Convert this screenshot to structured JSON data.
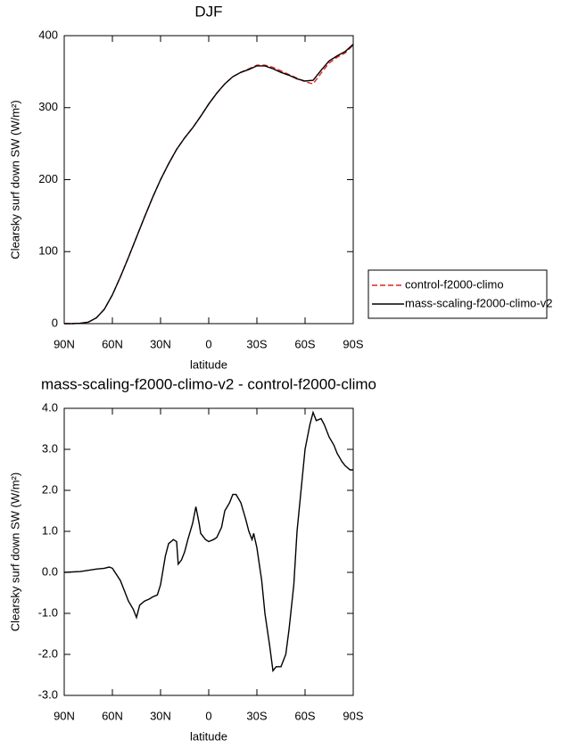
{
  "chart_data": [
    {
      "type": "line",
      "title": "DJF",
      "xlabel": "latitude",
      "ylabel": "Clearsky surf down SW (W/m²)",
      "xlim": [
        90,
        -90
      ],
      "xticks": [
        {
          "value": 90,
          "label": "90N"
        },
        {
          "value": 60,
          "label": "60N"
        },
        {
          "value": 30,
          "label": "30N"
        },
        0,
        {
          "value": -30,
          "label": "30S"
        },
        {
          "value": -60,
          "label": "60S"
        },
        {
          "value": -90,
          "label": "90S"
        }
      ],
      "ylim": [
        0,
        400
      ],
      "yticks": [
        0,
        100,
        200,
        300,
        400
      ],
      "x": [
        90,
        85,
        80,
        75,
        70,
        65,
        60,
        55,
        50,
        45,
        40,
        35,
        30,
        25,
        20,
        15,
        10,
        5,
        0,
        -5,
        -10,
        -15,
        -20,
        -25,
        -30,
        -35,
        -40,
        -45,
        -50,
        -55,
        -60,
        -65,
        -70,
        -75,
        -80,
        -85,
        -90
      ],
      "series": [
        {
          "name": "control-f2000-climo",
          "color": "#e8211c",
          "dashed": true,
          "values": [
            0,
            0,
            0.5,
            2,
            8,
            20,
            40,
            65,
            92,
            120,
            148,
            175,
            200,
            222,
            242,
            258,
            272,
            288,
            305,
            320,
            333,
            343,
            349,
            354,
            359,
            359,
            356,
            351,
            346,
            341,
            336,
            333,
            348,
            362,
            370,
            376,
            387
          ]
        },
        {
          "name": "mass-scaling-f2000-climo-v2",
          "color": "#000000",
          "dashed": false,
          "values": [
            0,
            0,
            0.5,
            2,
            8,
            20,
            40,
            65,
            92,
            120,
            148,
            175,
            200,
            222,
            242,
            258,
            272,
            288,
            305,
            320,
            333,
            343,
            349,
            353,
            358,
            358,
            354,
            349,
            345,
            340,
            337,
            338,
            352,
            365,
            372,
            378,
            388
          ]
        }
      ]
    },
    {
      "type": "line",
      "title": "mass-scaling-f2000-climo-v2 - control-f2000-climo",
      "xlabel": "latitude",
      "ylabel": "Clearsky surf down SW (W/m²)",
      "xlim": [
        90,
        -90
      ],
      "xticks": [
        {
          "value": 90,
          "label": "90N"
        },
        {
          "value": 60,
          "label": "60N"
        },
        {
          "value": 30,
          "label": "30N"
        },
        0,
        {
          "value": -30,
          "label": "30S"
        },
        {
          "value": -60,
          "label": "60S"
        },
        {
          "value": -90,
          "label": "90S"
        }
      ],
      "ylim": [
        -3,
        4
      ],
      "yticks": [
        {
          "value": -3,
          "label": "-3.0"
        },
        {
          "value": -2,
          "label": "-2.0"
        },
        {
          "value": -1,
          "label": "-1.0"
        },
        {
          "value": 0,
          "label": "0.0"
        },
        {
          "value": 1,
          "label": "1.0"
        },
        {
          "value": 2,
          "label": "2.0"
        },
        {
          "value": 3,
          "label": "3.0"
        },
        {
          "value": 4,
          "label": "4.0"
        }
      ],
      "x": [
        90,
        80,
        70,
        65,
        62,
        60,
        55,
        50,
        47,
        45,
        43,
        40,
        37,
        35,
        32,
        30,
        27,
        25,
        22,
        20,
        19,
        17,
        15,
        13,
        10,
        8,
        6,
        5,
        2,
        0,
        -3,
        -5,
        -8,
        -10,
        -13,
        -15,
        -17,
        -20,
        -23,
        -25,
        -27,
        -28,
        -30,
        -33,
        -35,
        -38,
        -40,
        -42,
        -45,
        -48,
        -50,
        -53,
        -55,
        -58,
        -60,
        -63,
        -65,
        -67,
        -70,
        -72,
        -75,
        -78,
        -80,
        -83,
        -85,
        -88,
        -90
      ],
      "series": [
        {
          "name": "mass-scaling-f2000-climo-v2",
          "color": "#000000",
          "dashed": false,
          "values": [
            0,
            0.02,
            0.08,
            0.1,
            0.13,
            0.1,
            -0.2,
            -0.7,
            -0.9,
            -1.1,
            -0.8,
            -0.7,
            -0.65,
            -0.6,
            -0.55,
            -0.3,
            0.4,
            0.7,
            0.8,
            0.75,
            0.2,
            0.3,
            0.5,
            0.8,
            1.2,
            1.6,
            1.2,
            0.95,
            0.8,
            0.75,
            0.8,
            0.85,
            1.1,
            1.5,
            1.7,
            1.9,
            1.9,
            1.7,
            1.3,
            1.0,
            0.8,
            0.95,
            0.6,
            -0.2,
            -1.0,
            -1.8,
            -2.4,
            -2.3,
            -2.3,
            -2.0,
            -1.4,
            -0.3,
            1.0,
            2.2,
            3.0,
            3.6,
            3.9,
            3.7,
            3.75,
            3.6,
            3.3,
            3.1,
            2.9,
            2.7,
            2.6,
            2.5,
            2.5
          ]
        }
      ]
    }
  ]
}
